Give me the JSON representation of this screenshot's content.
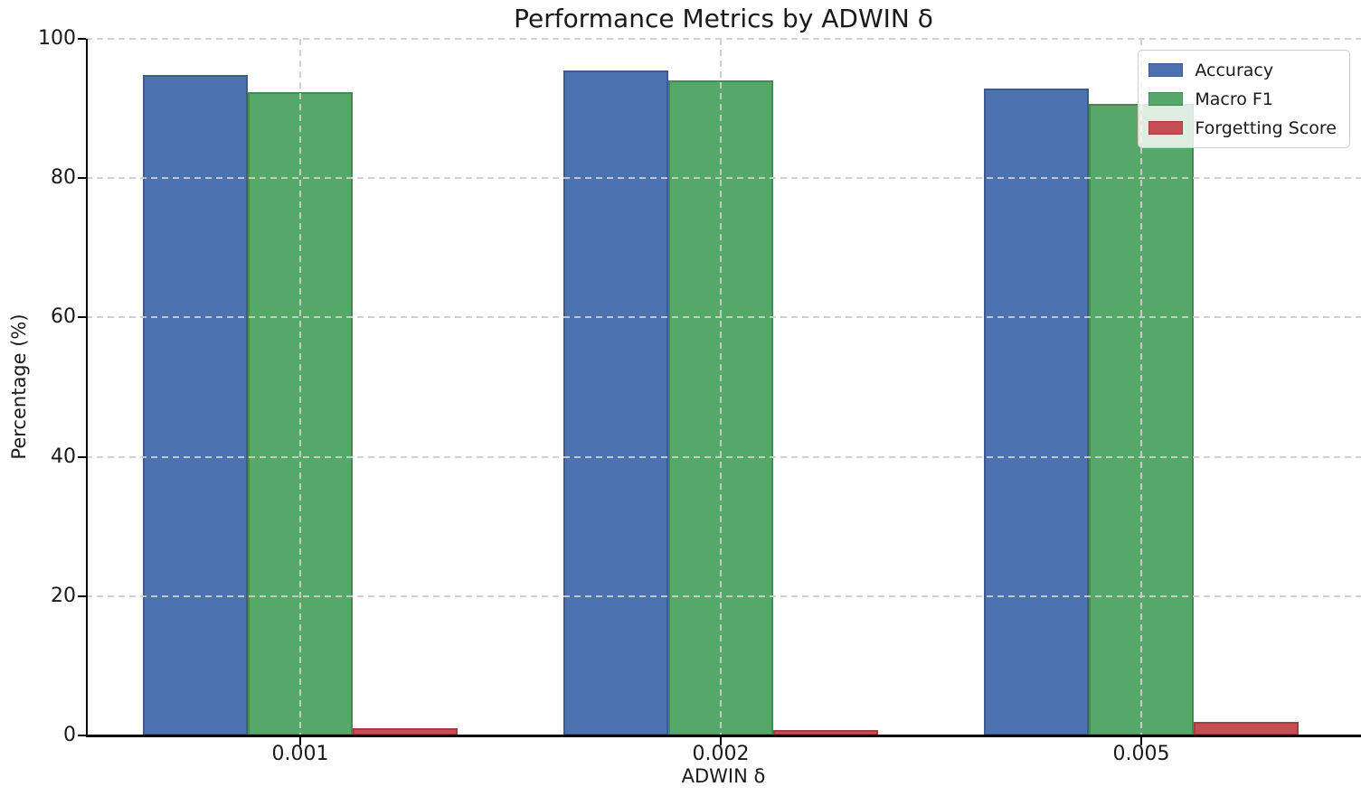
{
  "chart_data": {
    "type": "bar",
    "title": "Performance Metrics by ADWIN δ",
    "xlabel": "ADWIN δ",
    "ylabel": "Percentage (%)",
    "categories": [
      "0.001",
      "0.002",
      "0.005"
    ],
    "series": [
      {
        "name": "Accuracy",
        "color": "#4C72B0",
        "edge_color": "#3c5c91",
        "values": [
          94.8,
          95.5,
          92.9
        ]
      },
      {
        "name": "Macro F1",
        "color": "#55A868",
        "edge_color": "#448a55",
        "values": [
          92.3,
          94.0,
          90.6
        ]
      },
      {
        "name": "Forgetting Score",
        "color": "#C44E52",
        "edge_color": "#a23e42",
        "values": [
          1.0,
          0.8,
          1.9
        ]
      }
    ],
    "ylim": [
      0,
      100
    ],
    "yticks": [
      0,
      20,
      40,
      60,
      80,
      100
    ],
    "grid": true,
    "grid_style": "dashed",
    "legend_position": "upper right",
    "background_color": "#ffffff",
    "axis_color": "#000000"
  }
}
